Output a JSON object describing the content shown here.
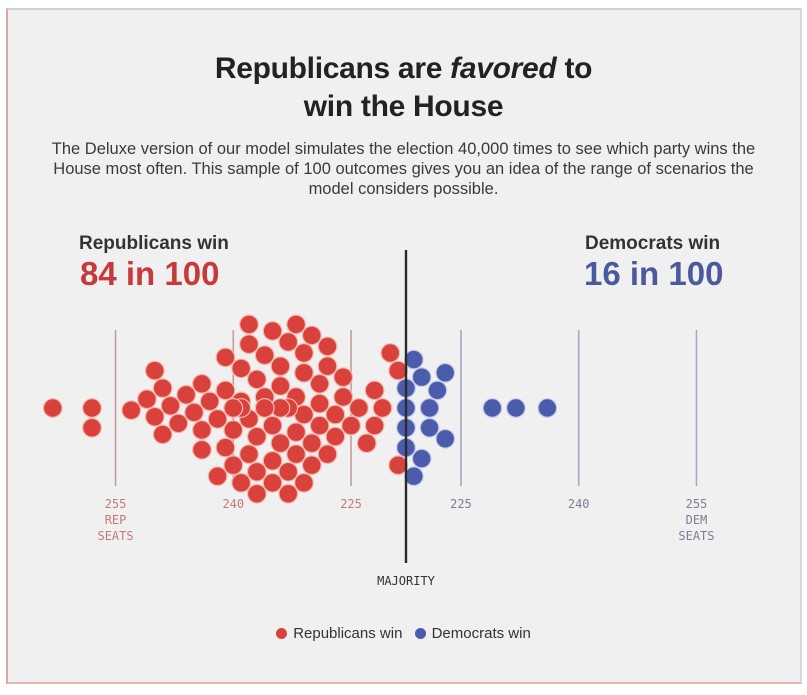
{
  "title_pre": "Republicans are ",
  "title_em": "favored",
  "title_post": " to",
  "title_line2": "win the House",
  "subtitle": "The Deluxe version of our model simulates the election 40,000 times to see which party wins the House most often. This sample of 100 outcomes gives you an idea of the range of scenarios the model considers possible.",
  "rep": {
    "label": "Republicans win",
    "value": "84 in 100",
    "color": "#d9413c",
    "text_color": "#c9393a"
  },
  "dem": {
    "label": "Democrats win",
    "value": "16 in 100",
    "color": "#4a5cab",
    "text_color": "#4a5a9c"
  },
  "legend": {
    "rep": "Republicans win",
    "dem": "Democrats win"
  },
  "chart_data": {
    "type": "scatter",
    "subtype": "beeswarm",
    "title": "Republicans are favored to win the House",
    "x_axis": {
      "description": "Seats won by the winning party (left side = Republican seats, right side = Democratic seats)",
      "majority": 218,
      "majority_label": "MAJORITY",
      "ticks": [
        {
          "side": "rep",
          "seats": 255,
          "label": [
            "255",
            "REP",
            "SEATS"
          ]
        },
        {
          "side": "rep",
          "seats": 240,
          "label": [
            "240"
          ]
        },
        {
          "side": "rep",
          "seats": 225,
          "label": [
            "225"
          ]
        },
        {
          "side": "dem",
          "seats": 225,
          "label": [
            "225"
          ]
        },
        {
          "side": "dem",
          "seats": 240,
          "label": [
            "240"
          ]
        },
        {
          "side": "dem",
          "seats": 255,
          "label": [
            "255",
            "DEM",
            "SEATS"
          ]
        }
      ]
    },
    "series": [
      {
        "name": "Republicans win",
        "count": 84,
        "seats": [
          263,
          258,
          258,
          253,
          251,
          250,
          250,
          249,
          249,
          248,
          247,
          246,
          245,
          244,
          244,
          244,
          243,
          242,
          242,
          241,
          241,
          241,
          240,
          240,
          240,
          240,
          239,
          239,
          239,
          239,
          238,
          238,
          238,
          238,
          237,
          237,
          237,
          237,
          236,
          236,
          236,
          236,
          235,
          235,
          235,
          235,
          234,
          234,
          234,
          234,
          233,
          233,
          233,
          233,
          232,
          232,
          232,
          232,
          231,
          231,
          231,
          231,
          230,
          230,
          230,
          229,
          229,
          229,
          228,
          228,
          228,
          227,
          227,
          226,
          226,
          225,
          224,
          223,
          222,
          222,
          221,
          220,
          219,
          219
        ]
      },
      {
        "name": "Democrats win",
        "count": 16,
        "seats": [
          218,
          218,
          218,
          218,
          219,
          219,
          220,
          220,
          221,
          221,
          222,
          223,
          223,
          229,
          232,
          236
        ]
      }
    ],
    "legend": [
      "Republicans win",
      "Democrats win"
    ],
    "legend_position": "bottom"
  }
}
